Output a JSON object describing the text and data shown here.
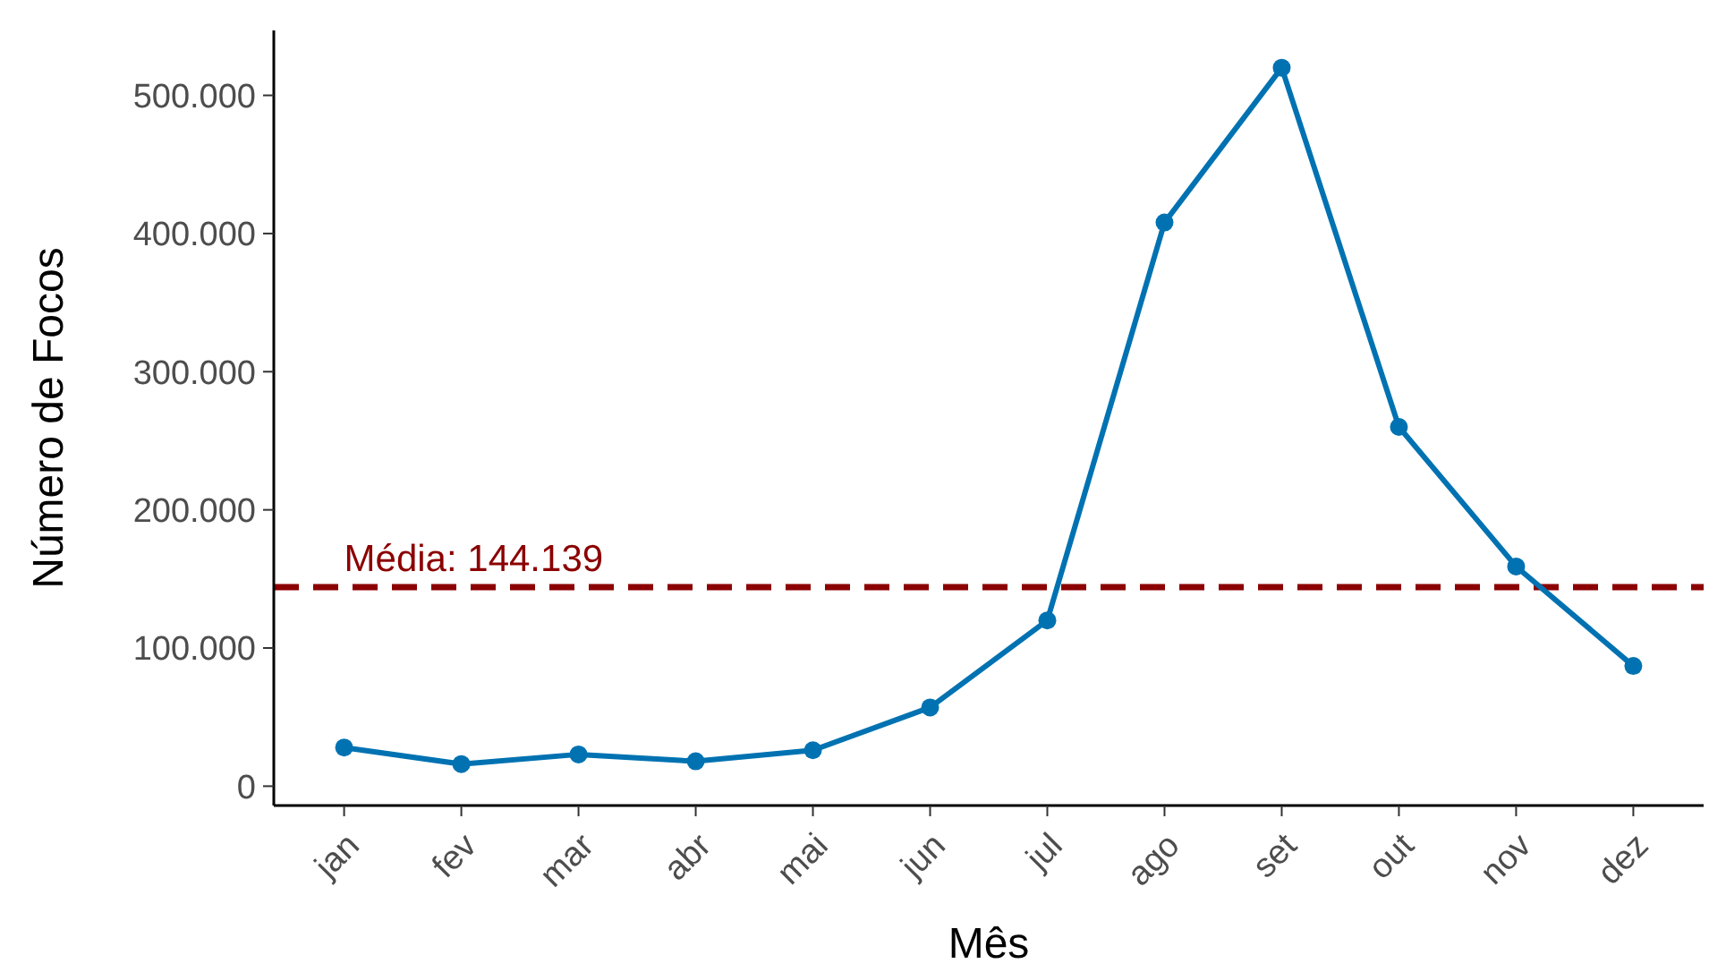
{
  "chart_data": {
    "type": "line",
    "xlabel": "Mês",
    "ylabel": "Número de Focos",
    "categories": [
      "jan",
      "fev",
      "mar",
      "abr",
      "mai",
      "jun",
      "jul",
      "ago",
      "set",
      "out",
      "nov",
      "dez"
    ],
    "series": [
      {
        "color": "#0072b2",
        "values": [
          28000,
          16000,
          23000,
          18000,
          26000,
          57000,
          120000,
          408000,
          520000,
          260000,
          159000,
          87000
        ]
      }
    ],
    "ylim": [
      -14000,
      547000
    ],
    "yticks": [
      {
        "value": 0,
        "label": "0"
      },
      {
        "value": 100000,
        "label": "100.000"
      },
      {
        "value": 200000,
        "label": "200.000"
      },
      {
        "value": 300000,
        "label": "300.000"
      },
      {
        "value": 400000,
        "label": "400.000"
      },
      {
        "value": 500000,
        "label": "500.000"
      }
    ],
    "ref_lines": [
      {
        "axis": "y",
        "value": 144139,
        "label": "Média: 144.139",
        "color": "#8b0000",
        "line_style": "dashed"
      }
    ],
    "grid": false,
    "marker": "circle",
    "line_style": "solid"
  }
}
